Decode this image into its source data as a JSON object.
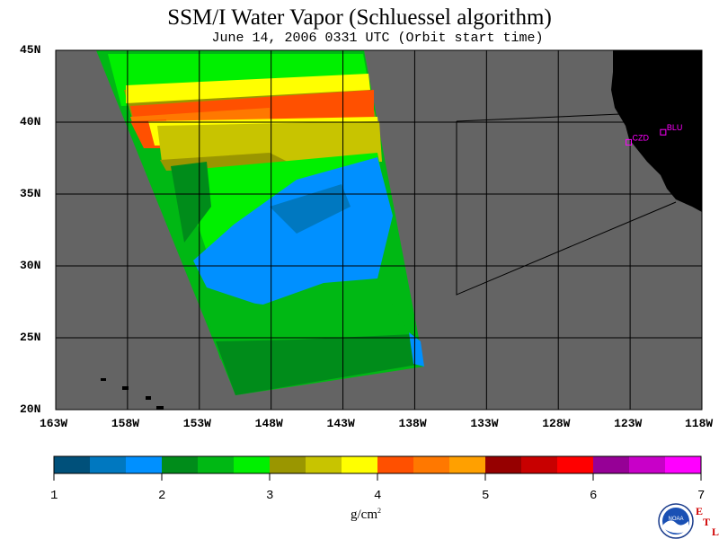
{
  "title": "SSM/I Water Vapor (Schluessel algorithm)",
  "subtitle": "June 14, 2006  0331 UTC  (Orbit start time)",
  "lat_labels": [
    "45N",
    "40N",
    "35N",
    "30N",
    "25N",
    "20N"
  ],
  "lon_labels": [
    "163W",
    "158W",
    "153W",
    "148W",
    "143W",
    "138W",
    "133W",
    "128W",
    "123W",
    "118W"
  ],
  "sites": [
    {
      "name": "BLU",
      "lon": -120.7,
      "lat": 39.3
    },
    {
      "name": "CZD",
      "lon": -123.1,
      "lat": 38.6
    }
  ],
  "colorbar": {
    "ticks": [
      "1",
      "2",
      "3",
      "4",
      "5",
      "6",
      "7"
    ],
    "min": 1,
    "max": 7,
    "colors": [
      "#00507a",
      "#0078c0",
      "#0090ff",
      "#008c1a",
      "#00b814",
      "#00f000",
      "#9a9600",
      "#c8c400",
      "#ffff00",
      "#ff5000",
      "#ff7800",
      "#ffa000",
      "#960000",
      "#c80000",
      "#ff0000",
      "#960096",
      "#c800c8",
      "#ff00ff"
    ]
  },
  "units": "g/cm",
  "units_exponent": "2",
  "logo_text": "NOAA",
  "etl_letters": [
    "E",
    "T",
    "L"
  ],
  "colors": {
    "background_gray": "#646464",
    "land": "#000000",
    "site_marker": "#ff00ff"
  }
}
